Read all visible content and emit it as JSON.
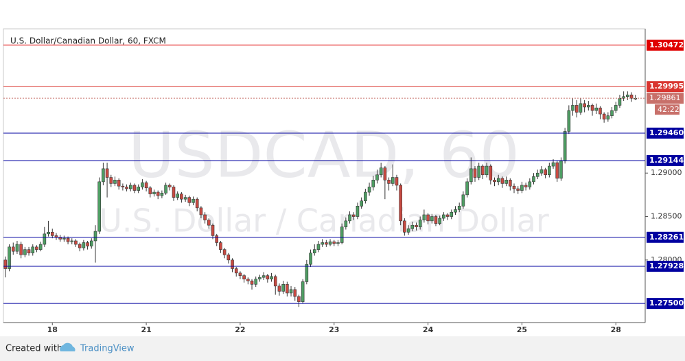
{
  "chart_data": {
    "type": "candlestick",
    "title": "U.S. Dollar/Canadian Dollar, 60, FXCM",
    "watermark": [
      "USDCAD, 60",
      "U.S. Dollar / Canadian Dollar"
    ],
    "up_color": "#4e9d63",
    "down_color": "#c94a42",
    "ylim": [
      1.2728,
      1.3066
    ],
    "yticks": [
      {
        "value": 1.29,
        "label": "1.29000"
      },
      {
        "value": 1.285,
        "label": "1.28500"
      },
      {
        "value": 1.28,
        "label": "1.28000"
      }
    ],
    "xlim": [
      -0.5,
      163.5
    ],
    "xticks": [
      {
        "value": 12,
        "label": "18"
      },
      {
        "value": 36,
        "label": "21"
      },
      {
        "value": 60,
        "label": "22"
      },
      {
        "value": 84,
        "label": "23"
      },
      {
        "value": 108,
        "label": "24"
      },
      {
        "value": 132,
        "label": "25"
      },
      {
        "value": 156,
        "label": "28"
      }
    ],
    "levels": [
      {
        "value": 1.30472,
        "label": "1.30472",
        "color": "#e00000"
      },
      {
        "value": 1.29995,
        "label": "1.29995",
        "color": "#d9352f"
      },
      {
        "value": 1.2946,
        "label": "1.29460",
        "color": "#0000a0"
      },
      {
        "value": 1.29144,
        "label": "1.29144",
        "color": "#0000a0"
      },
      {
        "value": 1.28261,
        "label": "1.28261",
        "color": "#0000a0"
      },
      {
        "value": 1.27928,
        "label": "1.27928",
        "color": "#0000a0"
      },
      {
        "value": 1.275,
        "label": "1.27500",
        "color": "#0000a0"
      }
    ],
    "last_price": {
      "value": 1.29861,
      "label": "1.29861",
      "color": "#c8706a"
    },
    "countdown": "42:22",
    "candles": [
      [
        1.28,
        1.2804,
        1.278,
        1.279
      ],
      [
        1.279,
        1.2818,
        1.2787,
        1.2815
      ],
      [
        1.2815,
        1.282,
        1.2806,
        1.281
      ],
      [
        1.281,
        1.2822,
        1.2807,
        1.2818
      ],
      [
        1.2818,
        1.2821,
        1.2802,
        1.2806
      ],
      [
        1.2806,
        1.2815,
        1.2803,
        1.2812
      ],
      [
        1.2812,
        1.2815,
        1.2805,
        1.2808
      ],
      [
        1.2808,
        1.2818,
        1.2805,
        1.2815
      ],
      [
        1.2815,
        1.2817,
        1.2809,
        1.2812
      ],
      [
        1.2812,
        1.2821,
        1.281,
        1.2818
      ],
      [
        1.2818,
        1.2838,
        1.2815,
        1.283
      ],
      [
        1.283,
        1.2845,
        1.2827,
        1.2832
      ],
      [
        1.2832,
        1.2836,
        1.2825,
        1.2828
      ],
      [
        1.2828,
        1.2831,
        1.2823,
        1.2826
      ],
      [
        1.2826,
        1.2829,
        1.2821,
        1.2824
      ],
      [
        1.2824,
        1.2828,
        1.2821,
        1.2825
      ],
      [
        1.2825,
        1.2827,
        1.2818,
        1.2821
      ],
      [
        1.2821,
        1.2825,
        1.2818,
        1.2822
      ],
      [
        1.2822,
        1.2824,
        1.2815,
        1.2818
      ],
      [
        1.2818,
        1.282,
        1.281,
        1.2814
      ],
      [
        1.2814,
        1.2823,
        1.2811,
        1.282
      ],
      [
        1.282,
        1.2822,
        1.2812,
        1.2816
      ],
      [
        1.2816,
        1.2825,
        1.2813,
        1.2822
      ],
      [
        1.2822,
        1.284,
        1.2797,
        1.2833
      ],
      [
        1.2833,
        1.2895,
        1.283,
        1.289
      ],
      [
        1.289,
        1.2912,
        1.2886,
        1.2905
      ],
      [
        1.2905,
        1.2912,
        1.2872,
        1.2895
      ],
      [
        1.2895,
        1.2898,
        1.2884,
        1.2888
      ],
      [
        1.2888,
        1.2896,
        1.2885,
        1.2892
      ],
      [
        1.2892,
        1.2894,
        1.2881,
        1.2885
      ],
      [
        1.2885,
        1.2888,
        1.288,
        1.2884
      ],
      [
        1.2884,
        1.2887,
        1.2879,
        1.2882
      ],
      [
        1.2882,
        1.2889,
        1.2879,
        1.2886
      ],
      [
        1.2886,
        1.2888,
        1.2877,
        1.288
      ],
      [
        1.288,
        1.2887,
        1.2877,
        1.2884
      ],
      [
        1.2884,
        1.2893,
        1.2881,
        1.2889
      ],
      [
        1.2889,
        1.2891,
        1.2879,
        1.2883
      ],
      [
        1.2883,
        1.2885,
        1.2872,
        1.2876
      ],
      [
        1.2876,
        1.2881,
        1.2873,
        1.2878
      ],
      [
        1.2878,
        1.288,
        1.287,
        1.2874
      ],
      [
        1.2874,
        1.288,
        1.2871,
        1.2877
      ],
      [
        1.2877,
        1.2889,
        1.2875,
        1.2886
      ],
      [
        1.2886,
        1.2888,
        1.288,
        1.2884
      ],
      [
        1.2884,
        1.2886,
        1.2868,
        1.2872
      ],
      [
        1.2872,
        1.2879,
        1.2869,
        1.2876
      ],
      [
        1.2876,
        1.2878,
        1.2866,
        1.287
      ],
      [
        1.287,
        1.2875,
        1.2867,
        1.2872
      ],
      [
        1.2872,
        1.2874,
        1.2862,
        1.2866
      ],
      [
        1.2866,
        1.2873,
        1.2863,
        1.287
      ],
      [
        1.287,
        1.2872,
        1.2856,
        1.286
      ],
      [
        1.286,
        1.2862,
        1.2848,
        1.2852
      ],
      [
        1.2852,
        1.2855,
        1.2842,
        1.2846
      ],
      [
        1.2846,
        1.2848,
        1.2836,
        1.284
      ],
      [
        1.284,
        1.2842,
        1.2824,
        1.2828
      ],
      [
        1.2828,
        1.283,
        1.2816,
        1.282
      ],
      [
        1.282,
        1.2822,
        1.2808,
        1.2812
      ],
      [
        1.2812,
        1.2814,
        1.2802,
        1.2806
      ],
      [
        1.2806,
        1.2808,
        1.2796,
        1.28
      ],
      [
        1.28,
        1.2802,
        1.2786,
        1.279
      ],
      [
        1.279,
        1.2792,
        1.2781,
        1.2785
      ],
      [
        1.2785,
        1.2787,
        1.2778,
        1.2782
      ],
      [
        1.2782,
        1.2784,
        1.2774,
        1.2778
      ],
      [
        1.2778,
        1.278,
        1.2772,
        1.2776
      ],
      [
        1.2776,
        1.2778,
        1.2766,
        1.2772
      ],
      [
        1.2772,
        1.2781,
        1.2769,
        1.2778
      ],
      [
        1.2778,
        1.2783,
        1.2775,
        1.278
      ],
      [
        1.278,
        1.2786,
        1.2777,
        1.2782
      ],
      [
        1.2782,
        1.2784,
        1.2774,
        1.2778
      ],
      [
        1.2778,
        1.2785,
        1.2775,
        1.2781
      ],
      [
        1.2781,
        1.2783,
        1.276,
        1.277
      ],
      [
        1.277,
        1.2773,
        1.2759,
        1.2764
      ],
      [
        1.2764,
        1.2776,
        1.2761,
        1.2772
      ],
      [
        1.2772,
        1.2775,
        1.2758,
        1.2762
      ],
      [
        1.2762,
        1.277,
        1.2758,
        1.2766
      ],
      [
        1.2766,
        1.2769,
        1.2753,
        1.2758
      ],
      [
        1.2758,
        1.276,
        1.2746,
        1.2752
      ],
      [
        1.2752,
        1.2778,
        1.275,
        1.2775
      ],
      [
        1.2775,
        1.28,
        1.2772,
        1.2795
      ],
      [
        1.2795,
        1.2812,
        1.2792,
        1.2808
      ],
      [
        1.2808,
        1.2818,
        1.2805,
        1.2812
      ],
      [
        1.2812,
        1.2822,
        1.2809,
        1.2818
      ],
      [
        1.2818,
        1.2824,
        1.2815,
        1.282
      ],
      [
        1.282,
        1.2823,
        1.2815,
        1.2818
      ],
      [
        1.2818,
        1.2824,
        1.2816,
        1.2821
      ],
      [
        1.2821,
        1.2823,
        1.2816,
        1.2819
      ],
      [
        1.2819,
        1.2823,
        1.2816,
        1.282
      ],
      [
        1.282,
        1.2842,
        1.2818,
        1.2838
      ],
      [
        1.2838,
        1.2849,
        1.2835,
        1.2845
      ],
      [
        1.2845,
        1.2856,
        1.2842,
        1.2852
      ],
      [
        1.2852,
        1.2855,
        1.2846,
        1.285
      ],
      [
        1.285,
        1.2866,
        1.2847,
        1.2862
      ],
      [
        1.2862,
        1.2872,
        1.2859,
        1.2868
      ],
      [
        1.2868,
        1.2882,
        1.2865,
        1.2878
      ],
      [
        1.2878,
        1.2889,
        1.2874,
        1.2884
      ],
      [
        1.2884,
        1.2897,
        1.288,
        1.2892
      ],
      [
        1.2892,
        1.2904,
        1.2888,
        1.2898
      ],
      [
        1.2898,
        1.2912,
        1.2895,
        1.2906
      ],
      [
        1.2906,
        1.2908,
        1.287,
        1.2892
      ],
      [
        1.2892,
        1.2895,
        1.288,
        1.2888
      ],
      [
        1.2888,
        1.291,
        1.2885,
        1.2895
      ],
      [
        1.2895,
        1.2898,
        1.288,
        1.2886
      ],
      [
        1.2886,
        1.2888,
        1.284,
        1.2845
      ],
      [
        1.2845,
        1.2848,
        1.2828,
        1.2832
      ],
      [
        1.2832,
        1.284,
        1.2829,
        1.2836
      ],
      [
        1.2836,
        1.2844,
        1.2833,
        1.284
      ],
      [
        1.284,
        1.2843,
        1.2834,
        1.2838
      ],
      [
        1.2838,
        1.285,
        1.2835,
        1.2846
      ],
      [
        1.2846,
        1.2858,
        1.2843,
        1.2852
      ],
      [
        1.2852,
        1.2854,
        1.2841,
        1.2845
      ],
      [
        1.2845,
        1.2853,
        1.2842,
        1.285
      ],
      [
        1.285,
        1.2852,
        1.2839,
        1.2842
      ],
      [
        1.2842,
        1.2851,
        1.284,
        1.2848
      ],
      [
        1.2848,
        1.2855,
        1.2845,
        1.2852
      ],
      [
        1.2852,
        1.2854,
        1.2846,
        1.285
      ],
      [
        1.285,
        1.2858,
        1.2847,
        1.2855
      ],
      [
        1.2855,
        1.2862,
        1.2852,
        1.2858
      ],
      [
        1.2858,
        1.2866,
        1.2855,
        1.2862
      ],
      [
        1.2862,
        1.2879,
        1.2859,
        1.2875
      ],
      [
        1.2875,
        1.2894,
        1.2872,
        1.289
      ],
      [
        1.289,
        1.2918,
        1.2887,
        1.2905
      ],
      [
        1.2905,
        1.2908,
        1.289,
        1.2895
      ],
      [
        1.2895,
        1.2912,
        1.2892,
        1.2908
      ],
      [
        1.2908,
        1.291,
        1.2893,
        1.2898
      ],
      [
        1.2898,
        1.2912,
        1.2895,
        1.2908
      ],
      [
        1.2908,
        1.291,
        1.2887,
        1.2892
      ],
      [
        1.2892,
        1.2895,
        1.2885,
        1.289
      ],
      [
        1.289,
        1.2898,
        1.2886,
        1.2894
      ],
      [
        1.2894,
        1.2896,
        1.2883,
        1.2888
      ],
      [
        1.2888,
        1.2896,
        1.2885,
        1.2892
      ],
      [
        1.2892,
        1.2894,
        1.288,
        1.2885
      ],
      [
        1.2885,
        1.2888,
        1.2877,
        1.2882
      ],
      [
        1.2882,
        1.2885,
        1.2876,
        1.288
      ],
      [
        1.288,
        1.289,
        1.2877,
        1.2886
      ],
      [
        1.2886,
        1.2889,
        1.288,
        1.2884
      ],
      [
        1.2884,
        1.2894,
        1.2881,
        1.289
      ],
      [
        1.289,
        1.29,
        1.2887,
        1.2896
      ],
      [
        1.2896,
        1.2904,
        1.2893,
        1.29
      ],
      [
        1.29,
        1.2908,
        1.2897,
        1.2904
      ],
      [
        1.2904,
        1.2906,
        1.2894,
        1.2898
      ],
      [
        1.2898,
        1.2912,
        1.2895,
        1.2908
      ],
      [
        1.2908,
        1.2916,
        1.2905,
        1.2912
      ],
      [
        1.2912,
        1.2914,
        1.289,
        1.2894
      ],
      [
        1.2894,
        1.2918,
        1.2891,
        1.2914
      ],
      [
        1.2914,
        1.2952,
        1.2911,
        1.2948
      ],
      [
        1.2948,
        1.2978,
        1.2945,
        1.2972
      ],
      [
        1.2972,
        1.2986,
        1.2966,
        1.2978
      ],
      [
        1.2978,
        1.2984,
        1.2964,
        1.297
      ],
      [
        1.297,
        1.2986,
        1.2967,
        1.298
      ],
      [
        1.298,
        1.2984,
        1.297,
        1.2976
      ],
      [
        1.2976,
        1.2983,
        1.2972,
        1.2978
      ],
      [
        1.2978,
        1.298,
        1.2966,
        1.2972
      ],
      [
        1.2972,
        1.298,
        1.2968,
        1.2975
      ],
      [
        1.2975,
        1.2977,
        1.2962,
        1.2968
      ],
      [
        1.2968,
        1.297,
        1.2958,
        1.2962
      ],
      [
        1.2962,
        1.297,
        1.2959,
        1.2966
      ],
      [
        1.2966,
        1.2976,
        1.2963,
        1.2972
      ],
      [
        1.2972,
        1.2982,
        1.2969,
        1.2978
      ],
      [
        1.2978,
        1.299,
        1.2975,
        1.2986
      ],
      [
        1.2986,
        1.2994,
        1.2983,
        1.2988
      ],
      [
        1.2988,
        1.2994,
        1.2984,
        1.299
      ],
      [
        1.299,
        1.2993,
        1.2982,
        1.2986
      ],
      [
        1.2986,
        1.299,
        1.2984,
        1.2986
      ]
    ]
  },
  "footer": {
    "created_with": "Created with",
    "brand": "TradingView"
  }
}
